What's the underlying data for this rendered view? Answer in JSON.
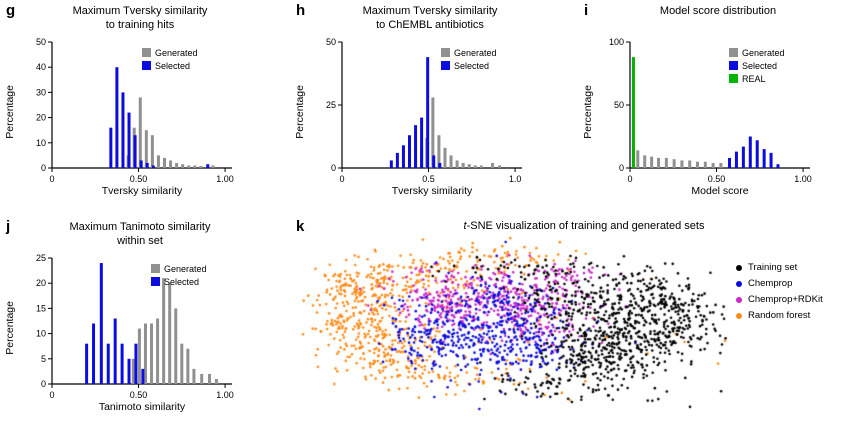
{
  "chart_data": [
    {
      "panel": "g",
      "letter": "g",
      "type": "bar",
      "title": "Maximum Tversky similarity to training hits",
      "title_lines": [
        "Maximum Tversky similarity",
        "to training hits"
      ],
      "xlabel": "Tversky similarity",
      "ylabel": "Percentage",
      "xlim": [
        0,
        1.04
      ],
      "ylim": [
        0,
        50
      ],
      "xticks": [
        {
          "v": 0,
          "label": "0"
        },
        {
          "v": 0.5,
          "label": "0.50"
        },
        {
          "v": 1,
          "label": "1.00"
        }
      ],
      "yticks": [
        0,
        10,
        20,
        30,
        40,
        50
      ],
      "legend_x": 0.5,
      "legend_y": 6,
      "legend": [
        {
          "name": "Generated",
          "color": "#909090"
        },
        {
          "name": "Selected",
          "color": "#0c0cdc"
        }
      ],
      "series": [
        {
          "name": "Generated",
          "color": "#909090",
          "bars": [
            [
              0.44,
              5
            ],
            [
              0.475,
              16
            ],
            [
              0.51,
              28
            ],
            [
              0.545,
              15
            ],
            [
              0.58,
              13
            ],
            [
              0.615,
              5
            ],
            [
              0.65,
              4
            ],
            [
              0.685,
              3
            ],
            [
              0.72,
              2
            ],
            [
              0.755,
              1.5
            ],
            [
              0.79,
              1
            ],
            [
              0.825,
              1
            ],
            [
              0.86,
              0.8
            ],
            [
              0.93,
              1
            ]
          ]
        },
        {
          "name": "Selected",
          "color": "#0c0cdc",
          "bars": [
            [
              0.34,
              16
            ],
            [
              0.375,
              40
            ],
            [
              0.41,
              30
            ],
            [
              0.445,
              22
            ],
            [
              0.48,
              13
            ],
            [
              0.515,
              3
            ],
            [
              0.55,
              2
            ],
            [
              0.585,
              1
            ],
            [
              0.9,
              1.5
            ]
          ]
        }
      ]
    },
    {
      "panel": "h",
      "letter": "h",
      "type": "bar",
      "title": "Maximum Tversky similarity to ChEMBL antibiotics",
      "title_lines": [
        "Maximum Tversky similarity",
        "to ChEMBL antibiotics"
      ],
      "xlabel": "Tversky similarity",
      "ylabel": "Percentage",
      "xlim": [
        0,
        1.04
      ],
      "ylim": [
        0,
        50
      ],
      "xticks": [
        {
          "v": 0,
          "label": "0"
        },
        {
          "v": 0.5,
          "label": "0.5"
        },
        {
          "v": 1,
          "label": "1.0"
        }
      ],
      "yticks": [
        0,
        25,
        50
      ],
      "legend_x": 0.55,
      "legend_y": 6,
      "legend": [
        {
          "name": "Generated",
          "color": "#909090"
        },
        {
          "name": "Selected",
          "color": "#0c0cdc"
        }
      ],
      "series": [
        {
          "name": "Generated",
          "color": "#909090",
          "bars": [
            [
              0.425,
              4
            ],
            [
              0.46,
              8
            ],
            [
              0.49,
              12
            ],
            [
              0.525,
              28
            ],
            [
              0.56,
              13
            ],
            [
              0.595,
              8
            ],
            [
              0.63,
              5
            ],
            [
              0.665,
              3
            ],
            [
              0.7,
              2
            ],
            [
              0.735,
              1.5
            ],
            [
              0.77,
              1
            ],
            [
              0.805,
              1
            ],
            [
              0.87,
              2
            ],
            [
              0.91,
              1
            ]
          ]
        },
        {
          "name": "Selected",
          "color": "#0c0cdc",
          "bars": [
            [
              0.285,
              3
            ],
            [
              0.32,
              6
            ],
            [
              0.355,
              9
            ],
            [
              0.39,
              13
            ],
            [
              0.425,
              17
            ],
            [
              0.46,
              20
            ],
            [
              0.495,
              44
            ],
            [
              0.53,
              5
            ],
            [
              0.565,
              2
            ]
          ]
        }
      ]
    },
    {
      "panel": "i",
      "letter": "i",
      "type": "bar",
      "title": "Model score distribution",
      "title_lines": [
        "Model score distribution"
      ],
      "xlabel": "Model score",
      "ylabel": "Percentage",
      "xlim": [
        0,
        1.04
      ],
      "ylim": [
        0,
        100
      ],
      "xticks": [
        {
          "v": 0,
          "label": "0"
        },
        {
          "v": 0.5,
          "label": "0.50"
        },
        {
          "v": 1,
          "label": "1.00"
        }
      ],
      "yticks": [
        0,
        50,
        100
      ],
      "legend_x": 0.55,
      "legend_y": 6,
      "legend": [
        {
          "name": "Generated",
          "color": "#909090"
        },
        {
          "name": "Selected",
          "color": "#0c0cdc"
        },
        {
          "name": "REAL",
          "color": "#00b400"
        }
      ],
      "series": [
        {
          "name": "Generated",
          "color": "#909090",
          "bars": [
            [
              0.045,
              14
            ],
            [
              0.085,
              10
            ],
            [
              0.125,
              9
            ],
            [
              0.165,
              8
            ],
            [
              0.21,
              8
            ],
            [
              0.255,
              7
            ],
            [
              0.3,
              6
            ],
            [
              0.345,
              6
            ],
            [
              0.39,
              5
            ],
            [
              0.435,
              5
            ],
            [
              0.48,
              4
            ],
            [
              0.525,
              4
            ]
          ]
        },
        {
          "name": "Selected",
          "color": "#0c0cdc",
          "bars": [
            [
              0.575,
              8
            ],
            [
              0.615,
              13
            ],
            [
              0.655,
              17
            ],
            [
              0.695,
              25
            ],
            [
              0.735,
              22
            ],
            [
              0.775,
              15
            ],
            [
              0.815,
              12
            ],
            [
              0.855,
              3
            ]
          ]
        },
        {
          "name": "REAL",
          "color": "#00b400",
          "bars": [
            [
              0.02,
              88
            ]
          ]
        }
      ]
    },
    {
      "panel": "j",
      "letter": "j",
      "type": "bar",
      "title": "Maximum Tanimoto similarity within set",
      "title_lines": [
        "Maximum Tanimoto similarity",
        "within set"
      ],
      "xlabel": "Tanimoto similarity",
      "ylabel": "Percentage",
      "xlim": [
        0,
        1.04
      ],
      "ylim": [
        0,
        25
      ],
      "xticks": [
        {
          "v": 0,
          "label": "0"
        },
        {
          "v": 0.5,
          "label": "0.50"
        },
        {
          "v": 1,
          "label": "1.00"
        }
      ],
      "yticks": [
        0,
        5,
        10,
        15,
        20,
        25
      ],
      "legend_x": 0.55,
      "legend_y": 6,
      "legend": [
        {
          "name": "Generated",
          "color": "#909090"
        },
        {
          "name": "Selected",
          "color": "#0c0cdc"
        }
      ],
      "series": [
        {
          "name": "Generated",
          "color": "#909090",
          "bars": [
            [
              0.47,
              5
            ],
            [
              0.505,
              11
            ],
            [
              0.54,
              12
            ],
            [
              0.575,
              12
            ],
            [
              0.61,
              13
            ],
            [
              0.645,
              21
            ],
            [
              0.68,
              20
            ],
            [
              0.715,
              15
            ],
            [
              0.75,
              8
            ],
            [
              0.785,
              7
            ],
            [
              0.82,
              3
            ],
            [
              0.865,
              2
            ],
            [
              0.91,
              2
            ],
            [
              0.95,
              1
            ]
          ]
        },
        {
          "name": "Selected",
          "color": "#0c0cdc",
          "bars": [
            [
              0.2,
              8
            ],
            [
              0.24,
              12
            ],
            [
              0.285,
              24
            ],
            [
              0.325,
              8
            ],
            [
              0.365,
              13
            ],
            [
              0.405,
              8
            ],
            [
              0.445,
              5
            ],
            [
              0.485,
              8
            ],
            [
              0.525,
              3
            ]
          ]
        }
      ]
    },
    {
      "panel": "k",
      "letter": "k",
      "type": "scatter",
      "title": "t-SNE visualization of training and generated sets",
      "title_italic": "t",
      "title_rest": "-SNE visualization of training and generated sets",
      "legend": [
        {
          "name": "Training set",
          "color": "#000000"
        },
        {
          "name": "Chemprop",
          "color": "#0c0cdc"
        },
        {
          "name": "Chemprop+RDKit",
          "color": "#c929c9"
        },
        {
          "name": "Random forest",
          "color": "#ff8c1a"
        }
      ],
      "series": [
        {
          "name": "Training set",
          "color": "#000000",
          "groups": [
            {
              "cx": 0.77,
              "cy": 0.5,
              "rx": 0.09,
              "ry": 0.15,
              "n": 520
            },
            {
              "cx": 0.68,
              "cy": 0.68,
              "rx": 0.07,
              "ry": 0.08,
              "n": 150
            },
            {
              "cx": 0.62,
              "cy": 0.33,
              "rx": 0.07,
              "ry": 0.07,
              "n": 90
            },
            {
              "cx": 0.52,
              "cy": 0.18,
              "rx": 0.1,
              "ry": 0.04,
              "n": 50
            },
            {
              "cx": 0.58,
              "cy": 0.82,
              "rx": 0.09,
              "ry": 0.04,
              "n": 60
            },
            {
              "cx": 0.88,
              "cy": 0.45,
              "rx": 0.04,
              "ry": 0.1,
              "n": 80
            }
          ]
        },
        {
          "name": "Chemprop",
          "color": "#0c0cdc",
          "groups": [
            {
              "cx": 0.43,
              "cy": 0.55,
              "rx": 0.09,
              "ry": 0.13,
              "n": 320
            },
            {
              "cx": 0.3,
              "cy": 0.52,
              "rx": 0.06,
              "ry": 0.09,
              "n": 90
            },
            {
              "cx": 0.54,
              "cy": 0.6,
              "rx": 0.06,
              "ry": 0.07,
              "n": 90
            },
            {
              "cx": 0.48,
              "cy": 0.35,
              "rx": 0.06,
              "ry": 0.06,
              "n": 60
            }
          ]
        },
        {
          "name": "Chemprop+RDKit",
          "color": "#c929c9",
          "groups": [
            {
              "cx": 0.44,
              "cy": 0.32,
              "rx": 0.11,
              "ry": 0.08,
              "n": 280
            },
            {
              "cx": 0.56,
              "cy": 0.46,
              "rx": 0.07,
              "ry": 0.08,
              "n": 130
            },
            {
              "cx": 0.34,
              "cy": 0.42,
              "rx": 0.06,
              "ry": 0.07,
              "n": 90
            },
            {
              "cx": 0.62,
              "cy": 0.22,
              "rx": 0.05,
              "ry": 0.04,
              "n": 40
            }
          ]
        },
        {
          "name": "Random forest",
          "color": "#ff8c1a",
          "groups": [
            {
              "cx": 0.16,
              "cy": 0.45,
              "rx": 0.06,
              "ry": 0.12,
              "n": 240
            },
            {
              "cx": 0.31,
              "cy": 0.22,
              "rx": 0.09,
              "ry": 0.07,
              "n": 150
            },
            {
              "cx": 0.23,
              "cy": 0.66,
              "rx": 0.06,
              "ry": 0.07,
              "n": 110
            },
            {
              "cx": 0.44,
              "cy": 0.12,
              "rx": 0.1,
              "ry": 0.04,
              "n": 60
            },
            {
              "cx": 0.12,
              "cy": 0.25,
              "rx": 0.04,
              "ry": 0.06,
              "n": 50
            },
            {
              "cx": 0.38,
              "cy": 0.78,
              "rx": 0.08,
              "ry": 0.05,
              "n": 60
            },
            {
              "cx": 0.5,
              "cy": 0.5,
              "rx": 0.28,
              "ry": 0.22,
              "n": 50
            }
          ]
        }
      ]
    }
  ]
}
